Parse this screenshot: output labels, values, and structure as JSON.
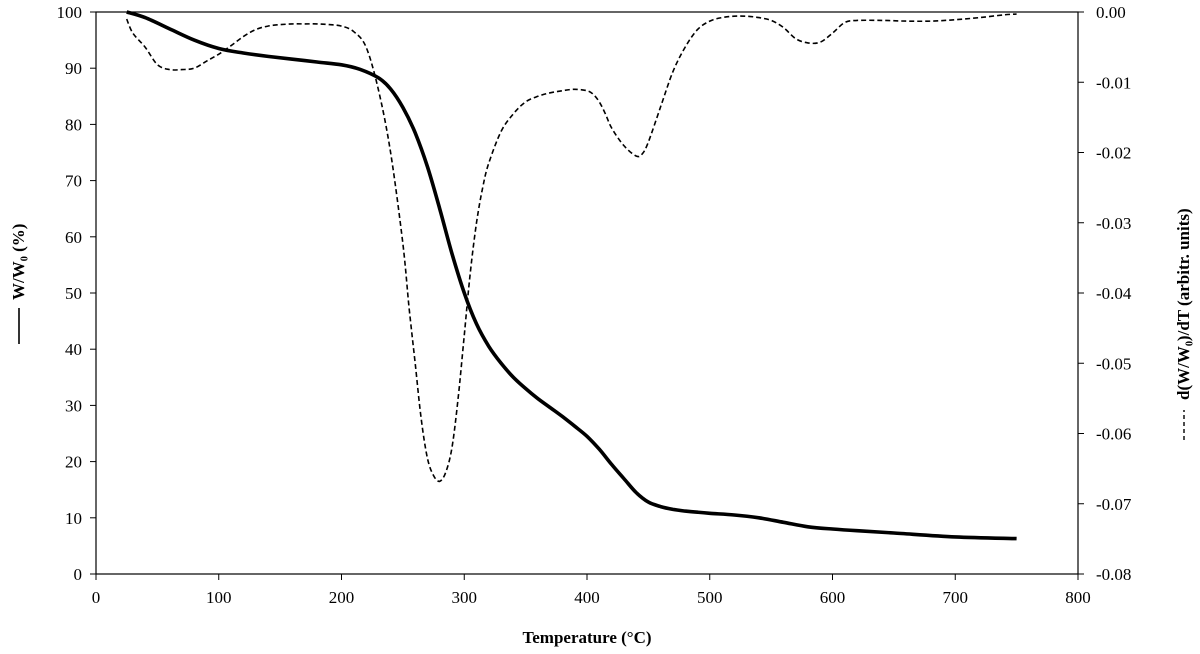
{
  "chart_data": {
    "type": "line",
    "xlabel": "Temperature  (°C)",
    "ylabel_left": "W/W₀ (%)",
    "ylabel_right": "d(W/W₀)/dT  (arbitr. units)",
    "xlim": [
      0,
      800
    ],
    "ylim_left": [
      0,
      100
    ],
    "ylim_right": [
      -0.08,
      0.0
    ],
    "x_ticks": [
      0,
      100,
      200,
      300,
      400,
      500,
      600,
      700,
      800
    ],
    "y_ticks_left": [
      0,
      10,
      20,
      30,
      40,
      50,
      60,
      70,
      80,
      90,
      100
    ],
    "y_ticks_right": [
      "0.00",
      "-0.01",
      "-0.02",
      "-0.03",
      "-0.04",
      "-0.05",
      "-0.06",
      "-0.07",
      "-0.08"
    ],
    "grid": false,
    "legend": "none",
    "series": [
      {
        "axis": "left",
        "style": "solid",
        "x": [
          25,
          40,
          60,
          80,
          100,
          120,
          140,
          160,
          180,
          200,
          215,
          230,
          240,
          250,
          260,
          270,
          280,
          290,
          300,
          310,
          320,
          330,
          340,
          350,
          360,
          370,
          380,
          390,
          400,
          410,
          420,
          430,
          440,
          450,
          460,
          470,
          480,
          490,
          500,
          520,
          540,
          560,
          580,
          600,
          620,
          650,
          700,
          750
        ],
        "values": [
          100,
          99,
          97,
          95,
          93.5,
          92.7,
          92.1,
          91.6,
          91.1,
          90.6,
          89.8,
          88.3,
          86.3,
          83,
          78.5,
          72.5,
          65,
          57,
          50,
          44.5,
          40.5,
          37.5,
          35,
          33,
          31.2,
          29.6,
          28,
          26.3,
          24.5,
          22.2,
          19.5,
          17,
          14.5,
          12.8,
          12,
          11.5,
          11.2,
          11,
          10.8,
          10.5,
          10,
          9.2,
          8.4,
          8,
          7.7,
          7.3,
          6.6,
          6.3
        ]
      },
      {
        "axis": "right",
        "style": "dashed",
        "x": [
          25,
          30,
          40,
          50,
          60,
          70,
          80,
          90,
          100,
          110,
          120,
          130,
          140,
          150,
          160,
          170,
          180,
          190,
          200,
          210,
          220,
          230,
          240,
          250,
          255,
          260,
          265,
          270,
          275,
          280,
          285,
          290,
          295,
          300,
          305,
          310,
          315,
          320,
          330,
          340,
          350,
          360,
          370,
          380,
          390,
          400,
          405,
          410,
          415,
          420,
          430,
          440,
          445,
          450,
          460,
          470,
          480,
          490,
          500,
          510,
          520,
          530,
          540,
          550,
          560,
          570,
          580,
          590,
          600,
          610,
          620,
          640,
          660,
          680,
          700,
          720,
          740,
          750
        ],
        "values": [
          -0.001,
          -0.003,
          -0.005,
          -0.0075,
          -0.0082,
          -0.0082,
          -0.008,
          -0.007,
          -0.006,
          -0.0048,
          -0.0035,
          -0.0025,
          -0.002,
          -0.0018,
          -0.0017,
          -0.0017,
          -0.0017,
          -0.0018,
          -0.002,
          -0.0028,
          -0.005,
          -0.011,
          -0.02,
          -0.033,
          -0.042,
          -0.05,
          -0.058,
          -0.0635,
          -0.066,
          -0.0668,
          -0.0655,
          -0.062,
          -0.055,
          -0.046,
          -0.037,
          -0.03,
          -0.025,
          -0.0215,
          -0.017,
          -0.0145,
          -0.0128,
          -0.012,
          -0.0115,
          -0.0112,
          -0.011,
          -0.0112,
          -0.0117,
          -0.0128,
          -0.0145,
          -0.0165,
          -0.019,
          -0.0205,
          -0.0202,
          -0.0185,
          -0.0135,
          -0.0085,
          -0.005,
          -0.0025,
          -0.0013,
          -0.0008,
          -0.0006,
          -0.0006,
          -0.0008,
          -0.0012,
          -0.0022,
          -0.0038,
          -0.0044,
          -0.0043,
          -0.003,
          -0.0015,
          -0.0012,
          -0.0012,
          -0.0013,
          -0.0013,
          -0.0011,
          -0.0008,
          -0.0004,
          -0.0003
        ]
      }
    ]
  }
}
